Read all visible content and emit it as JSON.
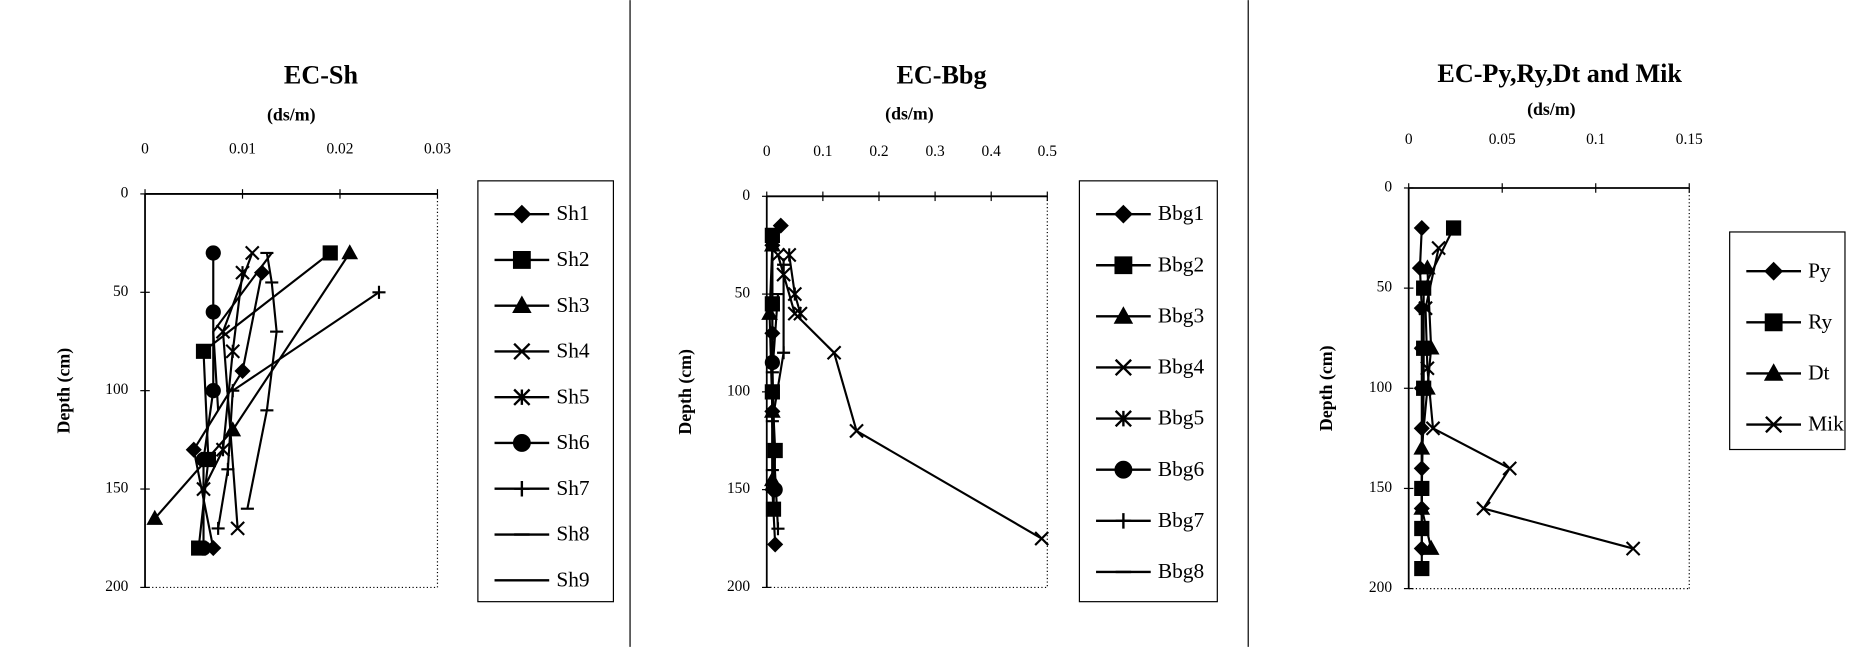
{
  "chart_data": [
    {
      "type": "line",
      "title": "EC-Sh",
      "x_label": "(ds/m)",
      "y_label": "Depth (cm)",
      "xlim": [
        0,
        0.03
      ],
      "xticks": [
        0,
        0.01,
        0.02,
        0.03
      ],
      "ylim": [
        0,
        200
      ],
      "yticks": [
        0,
        50,
        100,
        150,
        200
      ],
      "y_reversed": true,
      "x_axis_position": "top",
      "series": [
        {
          "name": "Sh1",
          "color": "#000",
          "marker": "diamond",
          "x": [
            0.012,
            0.01,
            0.005,
            0.007
          ],
          "values": [
            40,
            90,
            130,
            180
          ]
        },
        {
          "name": "Sh2",
          "color": "#000",
          "marker": "square",
          "x": [
            0.019,
            0.006,
            0.0065,
            0.0055
          ],
          "values": [
            30,
            80,
            135,
            180
          ]
        },
        {
          "name": "Sh3",
          "color": "#000",
          "marker": "triangle",
          "x": [
            0.021,
            0.009,
            0.001
          ],
          "values": [
            30,
            120,
            165
          ]
        },
        {
          "name": "Sh4",
          "color": "#000",
          "marker": "x",
          "x": [
            0.011,
            0.008,
            0.0095
          ],
          "values": [
            30,
            70,
            170
          ]
        },
        {
          "name": "Sh5",
          "color": "#000",
          "marker": "asterisk",
          "x": [
            0.01,
            0.009,
            0.008,
            0.006
          ],
          "values": [
            40,
            80,
            130,
            150
          ]
        },
        {
          "name": "Sh6",
          "color": "#000",
          "marker": "circle",
          "x": [
            0.007,
            0.007,
            0.007,
            0.006,
            0.006
          ],
          "values": [
            30,
            60,
            100,
            135,
            180
          ]
        },
        {
          "name": "Sh7",
          "color": "#000",
          "marker": "plus",
          "x": [
            0.024,
            0.009,
            0.0085,
            0.0075
          ],
          "values": [
            50,
            100,
            140,
            170
          ]
        },
        {
          "name": "Sh8",
          "color": "#000",
          "marker": "dash",
          "x": [
            0.0125,
            0.013,
            0.0135,
            0.0125,
            0.0105
          ],
          "values": [
            30,
            45,
            70,
            110,
            160
          ]
        },
        {
          "name": "Sh9",
          "color": "#000",
          "marker": "none",
          "x": [
            0.013,
            0.007,
            0.0075
          ],
          "values": [
            30,
            70,
            110
          ]
        }
      ]
    },
    {
      "type": "line",
      "title": "EC-Bbg",
      "x_label": "(ds/m)",
      "y_label": "Depth (cm)",
      "xlim": [
        0,
        0.5
      ],
      "xticks": [
        0,
        0.1,
        0.2,
        0.3,
        0.4,
        0.5
      ],
      "ylim": [
        0,
        200
      ],
      "yticks": [
        0,
        50,
        100,
        150,
        200
      ],
      "y_reversed": true,
      "x_axis_position": "top",
      "series": [
        {
          "name": "Bbg1",
          "color": "#000",
          "marker": "diamond",
          "x": [
            0.025,
            0.01,
            0.01,
            0.01,
            0.01,
            0.015
          ],
          "values": [
            15,
            25,
            70,
            110,
            150,
            178
          ]
        },
        {
          "name": "Bbg2",
          "color": "#000",
          "marker": "square",
          "x": [
            0.01,
            0.01,
            0.01,
            0.015,
            0.012
          ],
          "values": [
            20,
            55,
            100,
            130,
            160
          ]
        },
        {
          "name": "Bbg3",
          "color": "#000",
          "marker": "triangle",
          "x": [
            0.01,
            0.005,
            0.01,
            0.01
          ],
          "values": [
            25,
            60,
            110,
            145
          ]
        },
        {
          "name": "Bbg4",
          "color": "#000",
          "marker": "x",
          "x": [
            0.02,
            0.03,
            0.05,
            0.12,
            0.16,
            0.49
          ],
          "values": [
            30,
            40,
            60,
            80,
            120,
            175
          ]
        },
        {
          "name": "Bbg5",
          "color": "#000",
          "marker": "asterisk",
          "x": [
            0.04,
            0.05,
            0.06
          ],
          "values": [
            30,
            50,
            60
          ]
        },
        {
          "name": "Bbg6",
          "color": "#000",
          "marker": "circle",
          "x": [
            0.01,
            0.015
          ],
          "values": [
            85,
            150
          ]
        },
        {
          "name": "Bbg7",
          "color": "#000",
          "marker": "plus",
          "x": [
            0.03,
            0.03,
            0.01,
            0.02
          ],
          "values": [
            35,
            80,
            115,
            170
          ]
        },
        {
          "name": "Bbg8",
          "color": "#000",
          "marker": "dash",
          "x": [
            0.02,
            0.01,
            0.01
          ],
          "values": [
            50,
            90,
            140
          ]
        }
      ]
    },
    {
      "type": "line",
      "title": "EC-Py,Ry,Dt and Mik",
      "x_label": "(ds/m)",
      "y_label": "Depth (cm)",
      "xlim": [
        0,
        0.15
      ],
      "xticks": [
        0,
        0.05,
        0.1,
        0.15
      ],
      "ylim": [
        0,
        200
      ],
      "yticks": [
        0,
        50,
        100,
        150,
        200
      ],
      "y_reversed": true,
      "x_axis_position": "top",
      "series": [
        {
          "name": "Py",
          "color": "#000",
          "marker": "diamond",
          "x": [
            0.007,
            0.006,
            0.007,
            0.007,
            0.007,
            0.007,
            0.007,
            0.007,
            0.007
          ],
          "values": [
            20,
            40,
            60,
            80,
            100,
            120,
            140,
            160,
            180
          ]
        },
        {
          "name": "Ry",
          "color": "#000",
          "marker": "square",
          "x": [
            0.024,
            0.008,
            0.008,
            0.008,
            0.007,
            0.007,
            0.007
          ],
          "values": [
            20,
            50,
            80,
            100,
            150,
            170,
            190
          ]
        },
        {
          "name": "Dt",
          "color": "#000",
          "marker": "triangle",
          "x": [
            0.01,
            0.012,
            0.01,
            0.007,
            0.007,
            0.012
          ],
          "values": [
            40,
            80,
            100,
            130,
            160,
            180
          ]
        },
        {
          "name": "Mik",
          "color": "#000",
          "marker": "x",
          "x": [
            0.016,
            0.009,
            0.01,
            0.013,
            0.054,
            0.04,
            0.12
          ],
          "values": [
            30,
            60,
            90,
            120,
            140,
            160,
            180
          ]
        }
      ]
    }
  ]
}
